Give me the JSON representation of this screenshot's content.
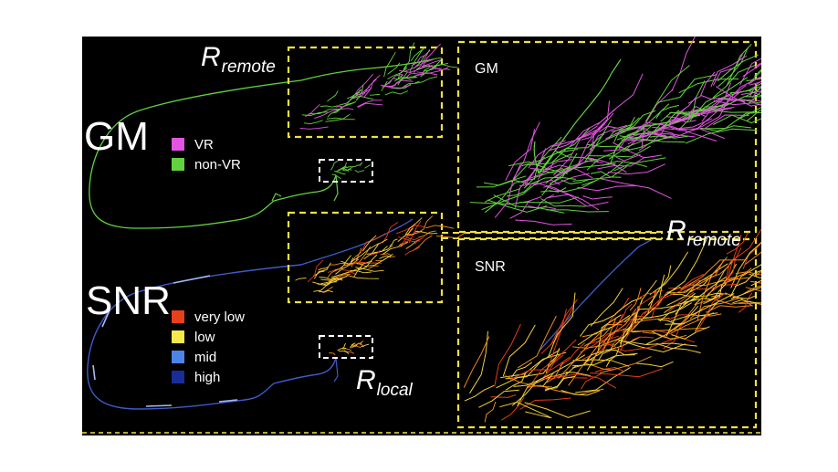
{
  "labels": {
    "gm_main": "GM",
    "snr_main": "SNR",
    "gm_panel": "GM",
    "snr_panel": "SNR"
  },
  "regions": {
    "remote_top": {
      "letter": "R",
      "sub": "remote"
    },
    "remote_right": {
      "letter": "R",
      "sub": "remote"
    },
    "local": {
      "letter": "R",
      "sub": "local"
    }
  },
  "legend_gm": [
    {
      "label": "VR",
      "color": "#e254e2"
    },
    {
      "label": "non-VR",
      "color": "#63d13f"
    }
  ],
  "legend_snr": [
    {
      "label": "very low",
      "color": "#e8401c"
    },
    {
      "label": "low",
      "color": "#f5e84a"
    },
    {
      "label": "mid",
      "color": "#4c85ea"
    },
    {
      "label": "high",
      "color": "#1a2d96"
    }
  ],
  "colors": {
    "box_remote": "#f0e040",
    "box_local": "#ffffff",
    "trace_green": "#63d13f",
    "trace_magenta": "#e254e2",
    "trace_blue": "#3e5bc9",
    "trace_lightblue": "#a7b9f0",
    "trace_yellow": "#f2d03a",
    "trace_orange": "#f08a1c",
    "trace_red": "#e23c1a"
  }
}
